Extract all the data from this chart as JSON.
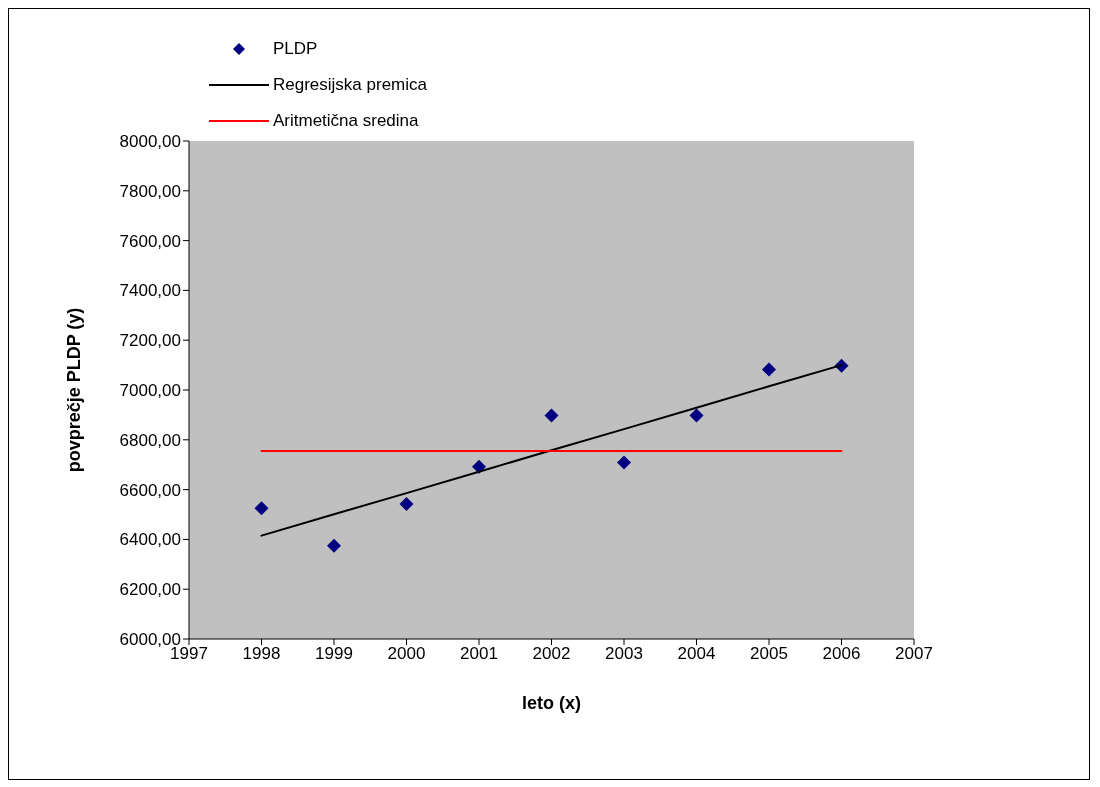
{
  "chart_data": {
    "type": "scatter",
    "xlabel": "leto (x)",
    "ylabel": "povprečje PLDP (y)",
    "x": [
      1998,
      1999,
      2000,
      2001,
      2002,
      2003,
      2004,
      2005,
      2006
    ],
    "series": [
      {
        "name": "PLDP",
        "type": "scatter",
        "color": "#000080",
        "marker": "diamond",
        "values": [
          6525,
          6375,
          6542,
          6692,
          6898,
          6709,
          6898,
          7082,
          7097
        ]
      },
      {
        "name": "Regresijska premica",
        "type": "line",
        "color": "#000000",
        "values": [
          6415,
          6501,
          6586,
          6672,
          6758,
          6843,
          6929,
          7015,
          7100
        ]
      },
      {
        "name": "Aritmetična sredina",
        "type": "line",
        "color": "#ff0000",
        "values": [
          6755,
          6755,
          6755,
          6755,
          6755,
          6755,
          6755,
          6755,
          6755
        ]
      }
    ],
    "xlim": [
      1997,
      2007
    ],
    "xticks": [
      1997,
      1998,
      1999,
      2000,
      2001,
      2002,
      2003,
      2004,
      2005,
      2006,
      2007
    ],
    "ylim": [
      6000,
      8000
    ],
    "yticks": [
      {
        "value": 6000,
        "label": "6000,00"
      },
      {
        "value": 6200,
        "label": "6200,00"
      },
      {
        "value": 6400,
        "label": "6400,00"
      },
      {
        "value": 6600,
        "label": "6600,00"
      },
      {
        "value": 6800,
        "label": "6800,00"
      },
      {
        "value": 7000,
        "label": "7000,00"
      },
      {
        "value": 7200,
        "label": "7200,00"
      },
      {
        "value": 7400,
        "label": "7400,00"
      },
      {
        "value": 7600,
        "label": "7600,00"
      },
      {
        "value": 7800,
        "label": "7800,00"
      },
      {
        "value": 8000,
        "label": "8000,00"
      }
    ],
    "legend": "top left",
    "grid": false
  }
}
